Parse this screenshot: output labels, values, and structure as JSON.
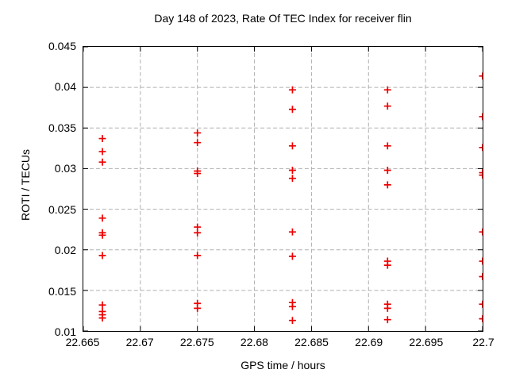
{
  "chart": {
    "title": "Day 148 of 2023, Rate Of TEC Index for receiver flin",
    "xlabel": "GPS time / hours",
    "ylabel": "ROTI / TECUs"
  },
  "chart_data": {
    "type": "scatter",
    "title": "Day 148 of 2023, Rate Of TEC Index for receiver flin",
    "xlabel": "GPS time / hours",
    "ylabel": "ROTI / TECUs",
    "xlim": [
      22.665,
      22.7
    ],
    "ylim": [
      0.01,
      0.045
    ],
    "xtick_values": [
      22.665,
      22.67,
      22.675,
      22.68,
      22.685,
      22.69,
      22.695,
      22.7
    ],
    "xtick_labels": [
      "22.665",
      "22.67",
      "22.675",
      "22.68",
      "22.685",
      "22.69",
      "22.695",
      "22.7"
    ],
    "ytick_values": [
      0.01,
      0.015,
      0.02,
      0.025,
      0.03,
      0.035,
      0.04,
      0.045
    ],
    "ytick_labels": [
      "0.01",
      "0.015",
      "0.02",
      "0.025",
      "0.03",
      "0.035",
      "0.04",
      "0.045"
    ],
    "grid": true,
    "legend": "none",
    "marker": "plus",
    "marker_color": "#ee0000",
    "grid_color": "#b0b0b0",
    "axis_color": "#000000",
    "series": [
      {
        "name": "ROTI",
        "points": [
          [
            22.66667,
            0.0337
          ],
          [
            22.66667,
            0.0321
          ],
          [
            22.66667,
            0.0308
          ],
          [
            22.66667,
            0.0239
          ],
          [
            22.66667,
            0.0221
          ],
          [
            22.66667,
            0.0218
          ],
          [
            22.66667,
            0.0193
          ],
          [
            22.66667,
            0.0132
          ],
          [
            22.66667,
            0.0124
          ],
          [
            22.66667,
            0.012
          ],
          [
            22.66667,
            0.0116
          ],
          [
            22.675,
            0.0344
          ],
          [
            22.675,
            0.0332
          ],
          [
            22.675,
            0.0297
          ],
          [
            22.675,
            0.0294
          ],
          [
            22.675,
            0.0228
          ],
          [
            22.675,
            0.0221
          ],
          [
            22.675,
            0.0193
          ],
          [
            22.675,
            0.0134
          ],
          [
            22.675,
            0.0128
          ],
          [
            22.68333,
            0.0397
          ],
          [
            22.68333,
            0.0373
          ],
          [
            22.68333,
            0.0328
          ],
          [
            22.68333,
            0.0298
          ],
          [
            22.68333,
            0.0288
          ],
          [
            22.68333,
            0.0222
          ],
          [
            22.68333,
            0.0192
          ],
          [
            22.68333,
            0.0135
          ],
          [
            22.68333,
            0.013
          ],
          [
            22.68333,
            0.0113
          ],
          [
            22.69167,
            0.0397
          ],
          [
            22.69167,
            0.0377
          ],
          [
            22.69167,
            0.0328
          ],
          [
            22.69167,
            0.0298
          ],
          [
            22.69167,
            0.028
          ],
          [
            22.69167,
            0.0186
          ],
          [
            22.69167,
            0.0181
          ],
          [
            22.69167,
            0.0133
          ],
          [
            22.69167,
            0.0128
          ],
          [
            22.69167,
            0.0114
          ],
          [
            22.7,
            0.0414
          ],
          [
            22.7,
            0.0364
          ],
          [
            22.7,
            0.0326
          ],
          [
            22.7,
            0.0295
          ],
          [
            22.7,
            0.0292
          ],
          [
            22.7,
            0.0222
          ],
          [
            22.7,
            0.0186
          ],
          [
            22.7,
            0.0167
          ],
          [
            22.7,
            0.0133
          ],
          [
            22.7,
            0.0115
          ]
        ]
      }
    ]
  }
}
